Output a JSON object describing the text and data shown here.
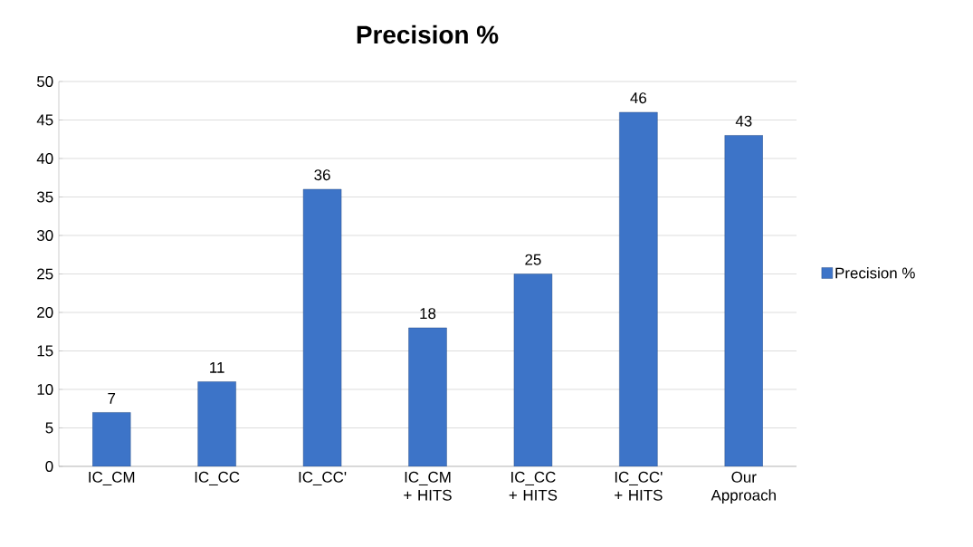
{
  "chart_data": {
    "type": "bar",
    "title": "Precision %",
    "categories": [
      "IC_CM",
      "IC_CC",
      "IC_CC'",
      "IC_CM + HITS",
      "IC_CC + HITS",
      "IC_CC' + HITS",
      "Our Approach"
    ],
    "series": [
      {
        "name": "Precision %",
        "color": "#3d74c8",
        "values": [
          7,
          11,
          36,
          18,
          25,
          46,
          43
        ]
      }
    ],
    "ylim": [
      0,
      50
    ],
    "yticks": [
      0,
      5,
      10,
      15,
      20,
      25,
      30,
      35,
      40,
      45,
      50
    ],
    "grid": "y",
    "legend": "right",
    "data_labels": true
  }
}
